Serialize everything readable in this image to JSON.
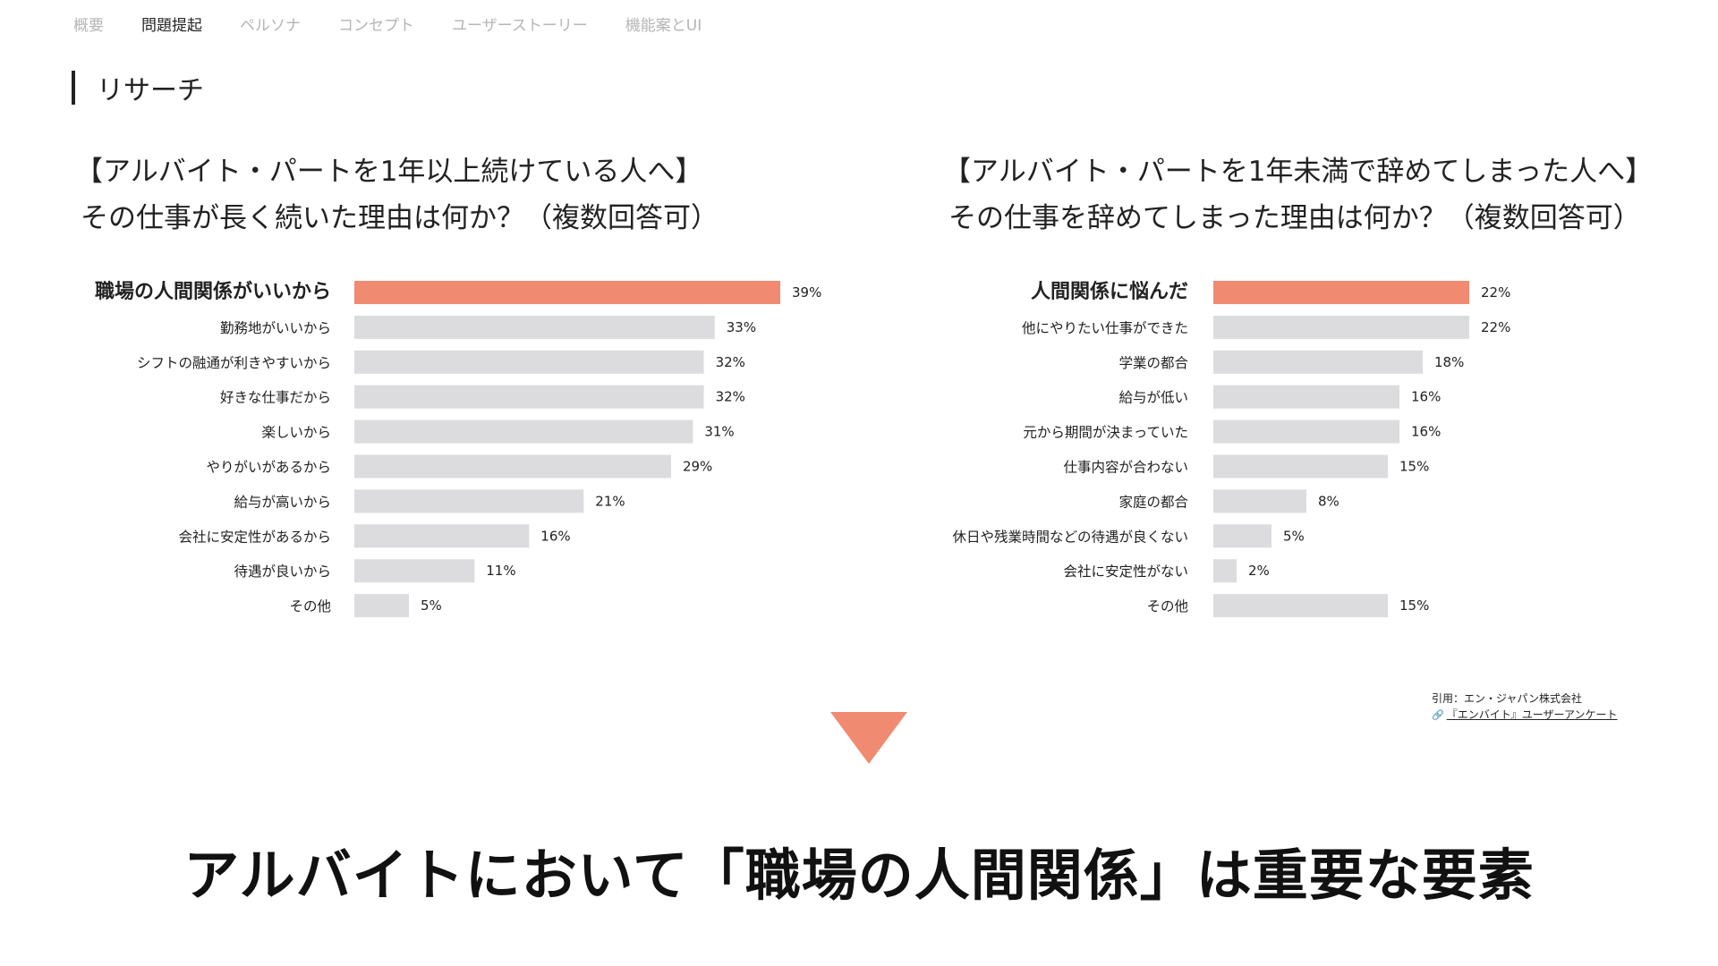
{
  "nav": {
    "items": [
      "概要",
      "問題提起",
      "ペルソナ",
      "コンセプト",
      "ユーザーストーリー",
      "機能案とUI"
    ],
    "active_index": 1
  },
  "section": {
    "title": "リサーチ"
  },
  "left": {
    "title_line1": "【アルバイト・パートを1年以上続けている人へ】",
    "title_line2": "その仕事が長く続いた理由は何か？（複数回答可）"
  },
  "right": {
    "title_line1": "【アルバイト・パートを1年未満で辞めてしまった人へ】",
    "title_line2": "その仕事を辞めてしまった理由は何か？（複数回答可）"
  },
  "chart_data": [
    {
      "type": "bar",
      "orientation": "horizontal",
      "categories": [
        "職場の人間関係がいいから",
        "勤務地がいいから",
        "シフトの融通が利きやすいから",
        "好きな仕事だから",
        "楽しいから",
        "やりがいがあるから",
        "給与が高いから",
        "会社に安定性があるから",
        "待遇が良いから",
        "その他"
      ],
      "values": [
        39,
        33,
        32,
        32,
        31,
        29,
        21,
        16,
        11,
        5
      ],
      "value_labels": [
        "39%",
        "33%",
        "32%",
        "32%",
        "31%",
        "29%",
        "21%",
        "16%",
        "11%",
        "5%"
      ],
      "unit": "%",
      "highlight_index": 0,
      "xlim": [
        0,
        39
      ],
      "grid": false,
      "colors": {
        "highlight": "#f08b72",
        "default": "#dcdcdf"
      }
    },
    {
      "type": "bar",
      "orientation": "horizontal",
      "categories": [
        "人間関係に悩んだ",
        "他にやりたい仕事ができた",
        "学業の都合",
        "給与が低い",
        "元から期間が決まっていた",
        "仕事内容が合わない",
        "家庭の都合",
        "休日や残業時間などの待遇が良くない",
        "会社に安定性がない",
        "その他"
      ],
      "values": [
        22,
        22,
        18,
        16,
        16,
        15,
        8,
        5,
        2,
        15
      ],
      "value_labels": [
        "22%",
        "22%",
        "18%",
        "16%",
        "16%",
        "15%",
        "8%",
        "5%",
        "2%",
        "15%"
      ],
      "unit": "%",
      "highlight_index": 0,
      "xlim": [
        0,
        22
      ],
      "grid": false,
      "colors": {
        "highlight": "#f08b72",
        "default": "#dcdcdf"
      }
    }
  ],
  "citation": {
    "line1": "引用：エン・ジャパン株式会社",
    "link_icon": "🔗",
    "link_text": "『エンバイト』ユーザーアンケート"
  },
  "arrow": {
    "icon": "down-triangle-icon",
    "color": "#f08b72"
  },
  "conclusion": "アルバイトにおいて「職場の人間関係」は重要な要素"
}
